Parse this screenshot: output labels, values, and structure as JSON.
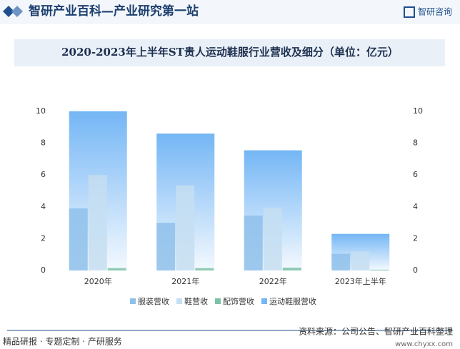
{
  "header": {
    "site_title": "智研产业百科—产业研究第一站",
    "logo": "智研咨询"
  },
  "chart_data": {
    "type": "bar",
    "title": "2020-2023年上半年ST贵人运动鞋服行业营收及细分（单位：亿元）",
    "categories": [
      "2020年",
      "2021年",
      "2022年",
      "2023年上半年"
    ],
    "series": [
      {
        "name": "服装营收",
        "color": "#8ec0ea",
        "values": [
          3.9,
          3.0,
          3.45,
          1.05
        ]
      },
      {
        "name": "鞋营收",
        "color": "#c6def1",
        "values": [
          6.0,
          5.35,
          3.95,
          1.2
        ]
      },
      {
        "name": "配饰营收",
        "color": "#7cc3a6",
        "values": [
          0.15,
          0.15,
          0.18,
          0.05
        ]
      },
      {
        "name": "运动鞋服营收",
        "color": "#74b6f5",
        "values": [
          10.0,
          8.6,
          7.55,
          2.3
        ]
      }
    ],
    "ylim": [
      0,
      10
    ],
    "yticks": [
      0,
      2,
      4,
      6,
      8,
      10
    ],
    "y2lim": [
      0,
      10
    ],
    "y2ticks": [
      0,
      2,
      4,
      6,
      8,
      10
    ]
  },
  "footer": {
    "source": "资料来源：公司公告、智研产业百科整理",
    "services": "精品研报 · 专题定制 · 产研服务",
    "url": "www.chyxx.com"
  }
}
